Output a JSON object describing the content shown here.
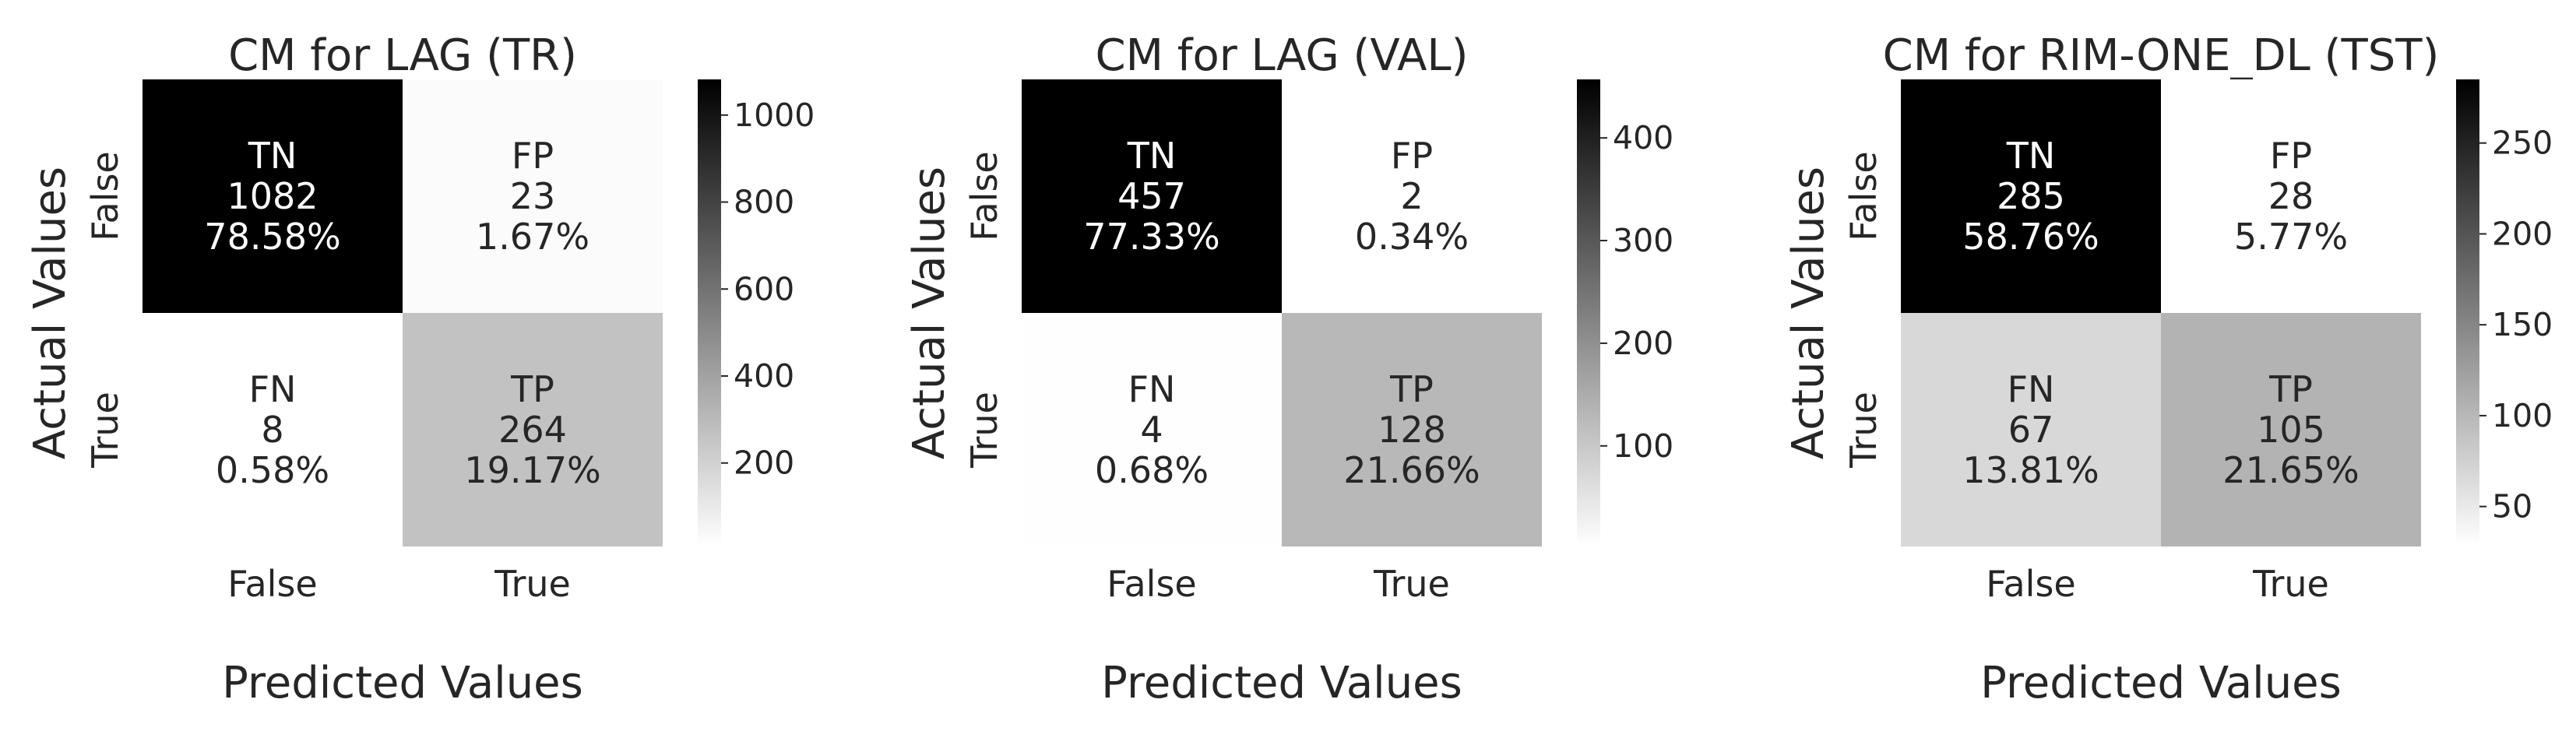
{
  "chart_data": [
    {
      "type": "heatmap",
      "title": "CM for LAG (TR)",
      "xlabel": "Predicted Values",
      "ylabel": "Actual Values",
      "x_tick_labels": [
        "False",
        "True"
      ],
      "y_tick_labels": [
        "False",
        "True"
      ],
      "cell_labels": [
        [
          "TN",
          "FP"
        ],
        [
          "FN",
          "TP"
        ]
      ],
      "values": [
        [
          1082,
          23
        ],
        [
          8,
          264
        ]
      ],
      "percentages": [
        [
          "78.58%",
          "1.67%"
        ],
        [
          "0.58%",
          "19.17%"
        ]
      ],
      "colorbar": {
        "ticks": [
          200,
          400,
          600,
          800,
          1000
        ],
        "range": [
          8,
          1082
        ]
      },
      "colormap": [
        "#ffffff",
        "#000000"
      ]
    },
    {
      "type": "heatmap",
      "title": "CM for LAG (VAL)",
      "xlabel": "Predicted Values",
      "ylabel": "Actual Values",
      "x_tick_labels": [
        "False",
        "True"
      ],
      "y_tick_labels": [
        "False",
        "True"
      ],
      "cell_labels": [
        [
          "TN",
          "FP"
        ],
        [
          "FN",
          "TP"
        ]
      ],
      "values": [
        [
          457,
          2
        ],
        [
          4,
          128
        ]
      ],
      "percentages": [
        [
          "77.33%",
          "0.34%"
        ],
        [
          "0.68%",
          "21.66%"
        ]
      ],
      "colorbar": {
        "ticks": [
          100,
          200,
          300,
          400
        ],
        "range": [
          2,
          457
        ]
      },
      "colormap": [
        "#ffffff",
        "#000000"
      ]
    },
    {
      "type": "heatmap",
      "title": "CM for RIM-ONE_DL (TST)",
      "xlabel": "Predicted Values",
      "ylabel": "Actual Values",
      "x_tick_labels": [
        "False",
        "True"
      ],
      "y_tick_labels": [
        "False",
        "True"
      ],
      "cell_labels": [
        [
          "TN",
          "FP"
        ],
        [
          "FN",
          "TP"
        ]
      ],
      "values": [
        [
          285,
          28
        ],
        [
          67,
          105
        ]
      ],
      "percentages": [
        [
          "58.76%",
          "5.77%"
        ],
        [
          "13.81%",
          "21.65%"
        ]
      ],
      "colorbar": {
        "ticks": [
          50,
          100,
          150,
          200,
          250
        ],
        "range": [
          28,
          285
        ]
      },
      "colormap": [
        "#ffffff",
        "#000000"
      ]
    }
  ]
}
